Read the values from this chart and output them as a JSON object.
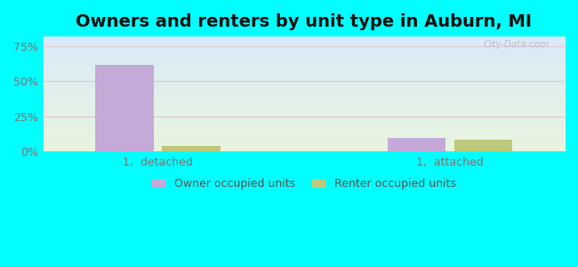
{
  "title": "Owners and renters by unit type in Auburn, MI",
  "title_fontsize": 14,
  "categories": [
    "1,  detached",
    "1,  attached"
  ],
  "owner_values": [
    0.615,
    0.095
  ],
  "renter_values": [
    0.042,
    0.085
  ],
  "owner_color": "#c4aad8",
  "renter_color": "#bcc87a",
  "yticks": [
    0.0,
    0.25,
    0.5,
    0.75
  ],
  "ytick_labels": [
    "0%",
    "25%",
    "50%",
    "75%"
  ],
  "ylim": [
    0,
    0.82
  ],
  "bg_color_top_left": "#daeaf8",
  "bg_color_bottom_right": "#e8f5e0",
  "grid_color": "#ddc8d0",
  "legend_labels": [
    "Owner occupied units",
    "Renter occupied units"
  ],
  "watermark": "City-Data.com",
  "bar_width": 0.28,
  "outer_bg": "#00ffff",
  "group_positions": [
    0.55,
    1.95
  ],
  "xlim": [
    0.0,
    2.5
  ]
}
